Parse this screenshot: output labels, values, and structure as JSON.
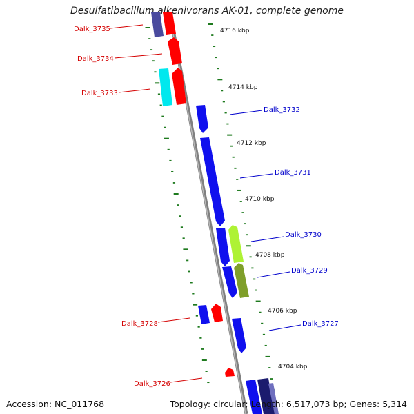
{
  "title": "Desulfatibacillum alkenivorans AK-01, complete genome",
  "accession": "Accession: NC_011768",
  "summary": "Topology: circular; Length: 6,517,073 bp; Genes: 5,314",
  "colors": {
    "backbone": "#808080",
    "tick": "#1e7a1e",
    "left_label": "#d40000",
    "right_label": "#0000cc",
    "red": "#ff0000",
    "blue": "#1010ee",
    "cyan": "#00e8ee",
    "navy": "#4a4a9e",
    "olive": "#7f9f2a",
    "lime": "#aef234",
    "dark_navy": "#1b1b6e"
  },
  "scale_labels": [
    {
      "id": "4716",
      "text": "4716 kbp"
    },
    {
      "id": "4714",
      "text": "4714 kbp"
    },
    {
      "id": "4712",
      "text": "4712 kbp"
    },
    {
      "id": "4710",
      "text": "4710 kbp"
    },
    {
      "id": "4708",
      "text": "4708 kbp"
    },
    {
      "id": "4706",
      "text": "4706 kbp"
    },
    {
      "id": "4704",
      "text": "4704 kbp"
    }
  ],
  "left_gene_labels": [
    {
      "id": "dalk-3735",
      "text": "Dalk_3735"
    },
    {
      "id": "dalk-3734",
      "text": "Dalk_3734"
    },
    {
      "id": "dalk-3733",
      "text": "Dalk_3733"
    },
    {
      "id": "dalk-3728",
      "text": "Dalk_3728"
    },
    {
      "id": "dalk-3726",
      "text": "Dalk_3726"
    }
  ],
  "right_gene_labels": [
    {
      "id": "dalk-3732",
      "text": "Dalk_3732"
    },
    {
      "id": "dalk-3731",
      "text": "Dalk_3731"
    },
    {
      "id": "dalk-3730",
      "text": "Dalk_3730"
    },
    {
      "id": "dalk-3729",
      "text": "Dalk_3729"
    },
    {
      "id": "dalk-3727",
      "text": "Dalk_3727"
    }
  ],
  "gene_features": [
    {
      "id": "g3735-navy",
      "color": "navy"
    },
    {
      "id": "g3735-red",
      "color": "red"
    },
    {
      "id": "g3734",
      "color": "red"
    },
    {
      "id": "g3733-cyan",
      "color": "cyan"
    },
    {
      "id": "g3733-red",
      "color": "red"
    },
    {
      "id": "g3732",
      "color": "blue"
    },
    {
      "id": "g3731",
      "color": "blue"
    },
    {
      "id": "g3730-blue",
      "color": "blue"
    },
    {
      "id": "g3730-lime",
      "color": "lime"
    },
    {
      "id": "g3729-blue",
      "color": "blue"
    },
    {
      "id": "g3729-olive",
      "color": "olive"
    },
    {
      "id": "g3728-blue",
      "color": "blue"
    },
    {
      "id": "g3728-red",
      "color": "red"
    },
    {
      "id": "g3727",
      "color": "blue"
    },
    {
      "id": "g3726",
      "color": "red"
    },
    {
      "id": "g-bottom-blue",
      "color": "blue"
    },
    {
      "id": "g-bottom-navy",
      "color": "dark_navy"
    }
  ]
}
